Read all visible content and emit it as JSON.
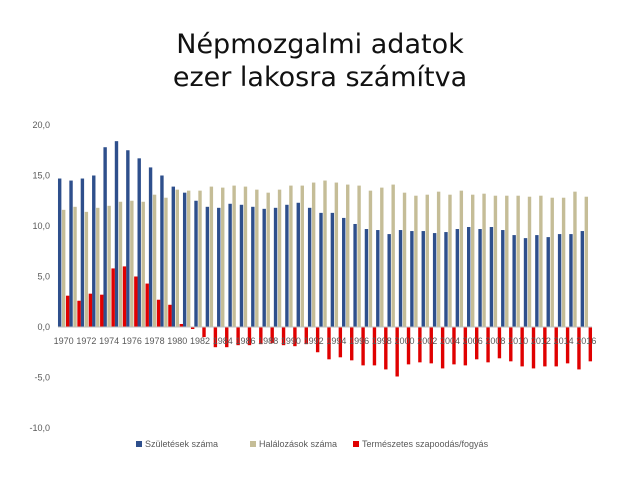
{
  "title_line1": "Népmozgalmi adatok",
  "title_line2": "ezer lakosra számítva",
  "colors": {
    "births": "#2e4f8c",
    "deaths": "#c5bd97",
    "natural": "#e00000",
    "zero_line": "#bfbfbf"
  },
  "chart_data": {
    "type": "bar",
    "title": "Népmozgalmi adatok ezer lakosra számítva",
    "ylim": [
      -10,
      20
    ],
    "yticks": [
      "-10,0",
      "-5,0",
      "0,0",
      "5,0",
      "10,0",
      "15,0",
      "20,0"
    ],
    "ytick_values": [
      -10,
      -5,
      0,
      5,
      10,
      15,
      20
    ],
    "grid": false,
    "legend": "bottom",
    "categories": [
      1970,
      1971,
      1972,
      1973,
      1974,
      1975,
      1976,
      1977,
      1978,
      1979,
      1980,
      1981,
      1982,
      1983,
      1984,
      1985,
      1986,
      1987,
      1988,
      1989,
      1990,
      1991,
      1992,
      1993,
      1994,
      1995,
      1996,
      1997,
      1998,
      1999,
      2000,
      2001,
      2002,
      2003,
      2004,
      2005,
      2006,
      2007,
      2008,
      2009,
      2010,
      2011,
      2012,
      2013,
      2014,
      2015,
      2016
    ],
    "xtick_labels": [
      "1970",
      "1972",
      "1974",
      "1976",
      "1978",
      "1980",
      "1982",
      "1984",
      "1986",
      "1988",
      "1990",
      "1992",
      "1994",
      "1996",
      "1998",
      "2000",
      "2002",
      "2004",
      "2006",
      "2008",
      "2010",
      "2012",
      "2014",
      "2016"
    ],
    "series": [
      {
        "name": "Születések száma",
        "values": [
          14.7,
          14.5,
          14.7,
          15.0,
          17.8,
          18.4,
          17.5,
          16.7,
          15.8,
          15.0,
          13.9,
          13.3,
          12.5,
          11.9,
          11.8,
          12.2,
          12.1,
          11.9,
          11.7,
          11.8,
          12.1,
          12.3,
          11.8,
          11.3,
          11.3,
          10.8,
          10.2,
          9.7,
          9.6,
          9.2,
          9.6,
          9.5,
          9.5,
          9.3,
          9.4,
          9.7,
          9.9,
          9.7,
          9.9,
          9.6,
          9.1,
          8.8,
          9.1,
          8.9,
          9.2,
          9.2,
          9.5
        ]
      },
      {
        "name": "Halálozások száma",
        "values": [
          11.6,
          11.9,
          11.4,
          11.8,
          12.0,
          12.4,
          12.5,
          12.4,
          13.1,
          12.8,
          13.6,
          13.5,
          13.5,
          13.9,
          13.8,
          14.0,
          13.9,
          13.6,
          13.3,
          13.6,
          14.0,
          14.0,
          14.3,
          14.5,
          14.3,
          14.1,
          14.0,
          13.5,
          13.8,
          14.1,
          13.3,
          13.0,
          13.1,
          13.4,
          13.1,
          13.5,
          13.1,
          13.2,
          13.0,
          13.0,
          13.0,
          12.9,
          13.0,
          12.8,
          12.8,
          13.4,
          12.9
        ]
      },
      {
        "name": "Természetes szapoodás/fogyás",
        "values": [
          3.1,
          2.6,
          3.3,
          3.2,
          5.8,
          6.0,
          5.0,
          4.3,
          2.7,
          2.2,
          0.3,
          -0.2,
          -1.0,
          -2.0,
          -2.0,
          -1.8,
          -1.8,
          -1.7,
          -1.6,
          -1.8,
          -1.9,
          -1.7,
          -2.5,
          -3.2,
          -3.0,
          -3.3,
          -3.8,
          -3.8,
          -4.2,
          -4.9,
          -3.7,
          -3.5,
          -3.6,
          -4.1,
          -3.7,
          -3.8,
          -3.2,
          -3.5,
          -3.1,
          -3.4,
          -3.9,
          -4.1,
          -3.9,
          -3.9,
          -3.6,
          -4.2,
          -3.4
        ]
      }
    ]
  }
}
